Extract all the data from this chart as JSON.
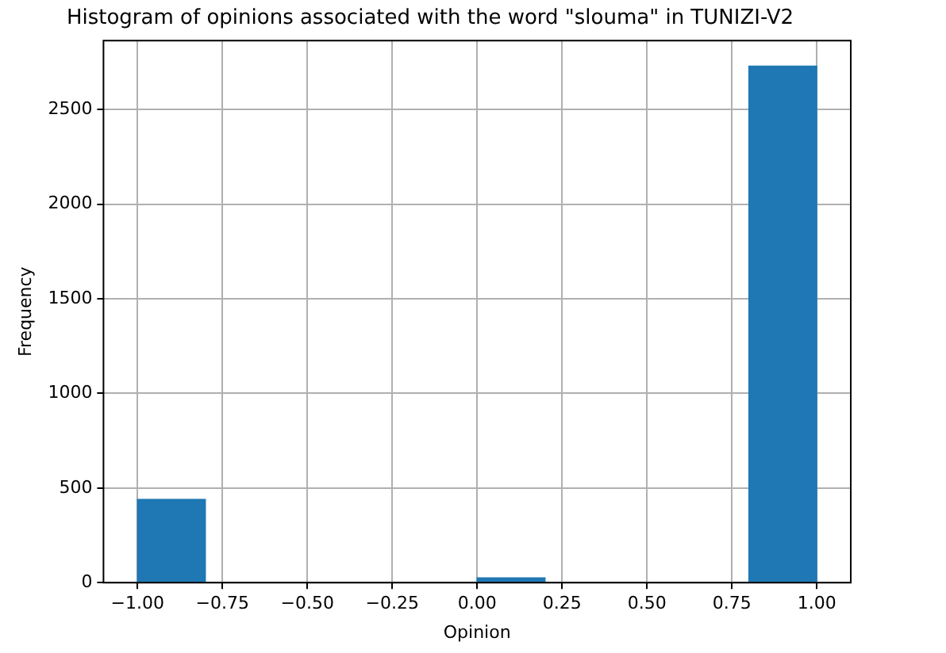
{
  "chart_data": {
    "type": "histogram",
    "title": "Histogram of opinions associated with the word \"slouma\" in TUNIZI-V2",
    "xlabel": "Opinion",
    "ylabel": "Frequency",
    "bins": [
      -1.0,
      -0.8,
      -0.6,
      -0.4,
      -0.2,
      0.0,
      0.2,
      0.4,
      0.6,
      0.8,
      1.0
    ],
    "values": [
      440,
      0,
      0,
      0,
      0,
      25,
      0,
      0,
      0,
      2730
    ],
    "color": "#1f77b4",
    "xlim": [
      -1.1,
      1.1
    ],
    "xticks": [
      {
        "value": -1,
        "label": "−1.00"
      },
      {
        "value": -0.75,
        "label": "−0.75"
      },
      {
        "value": -0.5,
        "label": "−0.50"
      },
      {
        "value": -0.25,
        "label": "−0.25"
      },
      {
        "value": 0,
        "label": "0.00"
      },
      {
        "value": 0.25,
        "label": "0.25"
      },
      {
        "value": 0.5,
        "label": "0.50"
      },
      {
        "value": 0.75,
        "label": "0.75"
      },
      {
        "value": 1,
        "label": "1.00"
      }
    ],
    "ylim": [
      0,
      2865
    ],
    "yticks": [
      0,
      500,
      1000,
      1500,
      2000,
      2500
    ],
    "grid": true
  }
}
